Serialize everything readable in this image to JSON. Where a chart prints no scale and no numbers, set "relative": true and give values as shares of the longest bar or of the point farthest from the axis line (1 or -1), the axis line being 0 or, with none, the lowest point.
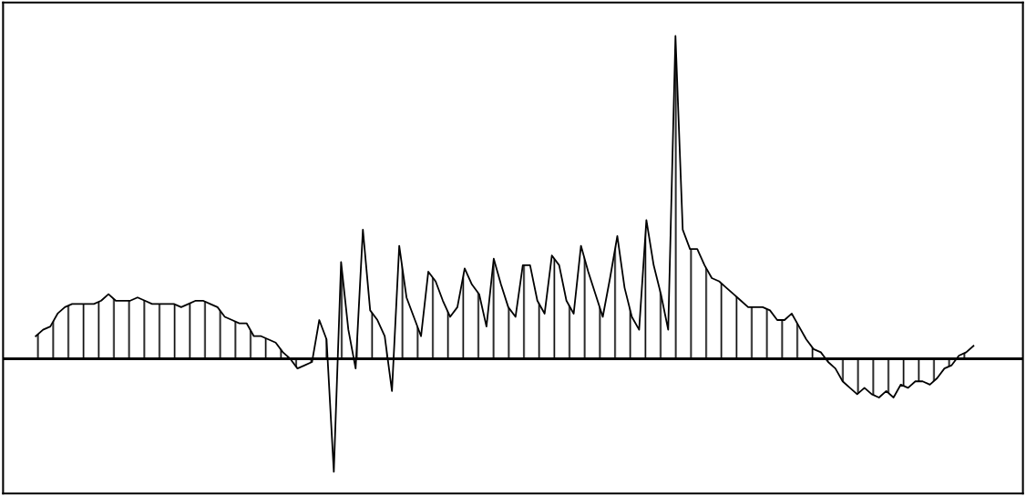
{
  "chart_data": {
    "type": "area",
    "relative": true,
    "categories": [
      null,
      null,
      null,
      null,
      null,
      null,
      null,
      null,
      null,
      null,
      null,
      null,
      null,
      null,
      null,
      null,
      null,
      null,
      null,
      null,
      null,
      null,
      null,
      null,
      null,
      null,
      null,
      null,
      null,
      null,
      null,
      null,
      null,
      null,
      null,
      null,
      null,
      null,
      null,
      null,
      null,
      null,
      null,
      null,
      null,
      null,
      null,
      null,
      null,
      null,
      null,
      null,
      null,
      null,
      null,
      null,
      null,
      null,
      null,
      null,
      null,
      null,
      null,
      null,
      null,
      null,
      null,
      null,
      null,
      null,
      null,
      null,
      null,
      null,
      null,
      null,
      null,
      null,
      null,
      null,
      null,
      null,
      null,
      null,
      null,
      null,
      null,
      null,
      null,
      null,
      null,
      null,
      null,
      null,
      null,
      null,
      null,
      null,
      null,
      null,
      null,
      null,
      null,
      null,
      null,
      null,
      null,
      null,
      null,
      null,
      null,
      null,
      null,
      null,
      null,
      null,
      null,
      null,
      null,
      null,
      null,
      null,
      null,
      null,
      null,
      null,
      null,
      null,
      null,
      null
    ],
    "series": [
      {
        "color": "#000000",
        "values": [
          0.07,
          0.09,
          0.1,
          0.14,
          0.16,
          0.17,
          0.17,
          0.17,
          0.17,
          0.18,
          0.2,
          0.18,
          0.18,
          0.18,
          0.19,
          0.18,
          0.17,
          0.17,
          0.17,
          0.17,
          0.16,
          0.17,
          0.18,
          0.18,
          0.17,
          0.16,
          0.13,
          0.12,
          0.11,
          0.11,
          0.07,
          0.07,
          0.06,
          0.05,
          0.02,
          0,
          -0.03,
          -0.02,
          -0.01,
          0.12,
          0.06,
          -0.35,
          0.3,
          0.09,
          -0.03,
          0.4,
          0.15,
          0.12,
          0.07,
          -0.1,
          0.35,
          0.19,
          0.13,
          0.07,
          0.27,
          0.24,
          0.18,
          0.13,
          0.16,
          0.28,
          0.23,
          0.2,
          0.1,
          0.31,
          0.23,
          0.16,
          0.13,
          0.29,
          0.29,
          0.18,
          0.14,
          0.32,
          0.29,
          0.18,
          0.14,
          0.35,
          0.27,
          0.2,
          0.13,
          0.25,
          0.38,
          0.22,
          0.13,
          0.09,
          0.43,
          0.29,
          0.2,
          0.09,
          1,
          0.4,
          0.34,
          0.34,
          0.29,
          0.25,
          0.24,
          0.22,
          0.2,
          0.18,
          0.16,
          0.16,
          0.16,
          0.15,
          0.12,
          0.12,
          0.14,
          0.1,
          0.06,
          0.03,
          0.02,
          -0.01,
          -0.03,
          -0.07,
          -0.09,
          -0.11,
          -0.09,
          -0.11,
          -0.12,
          -0.1,
          -0.12,
          -0.08,
          -0.09,
          -0.07,
          -0.07,
          -0.08,
          -0.06,
          -0.03,
          -0.02,
          0.01,
          0.02,
          0.04
        ]
      }
    ]
  }
}
